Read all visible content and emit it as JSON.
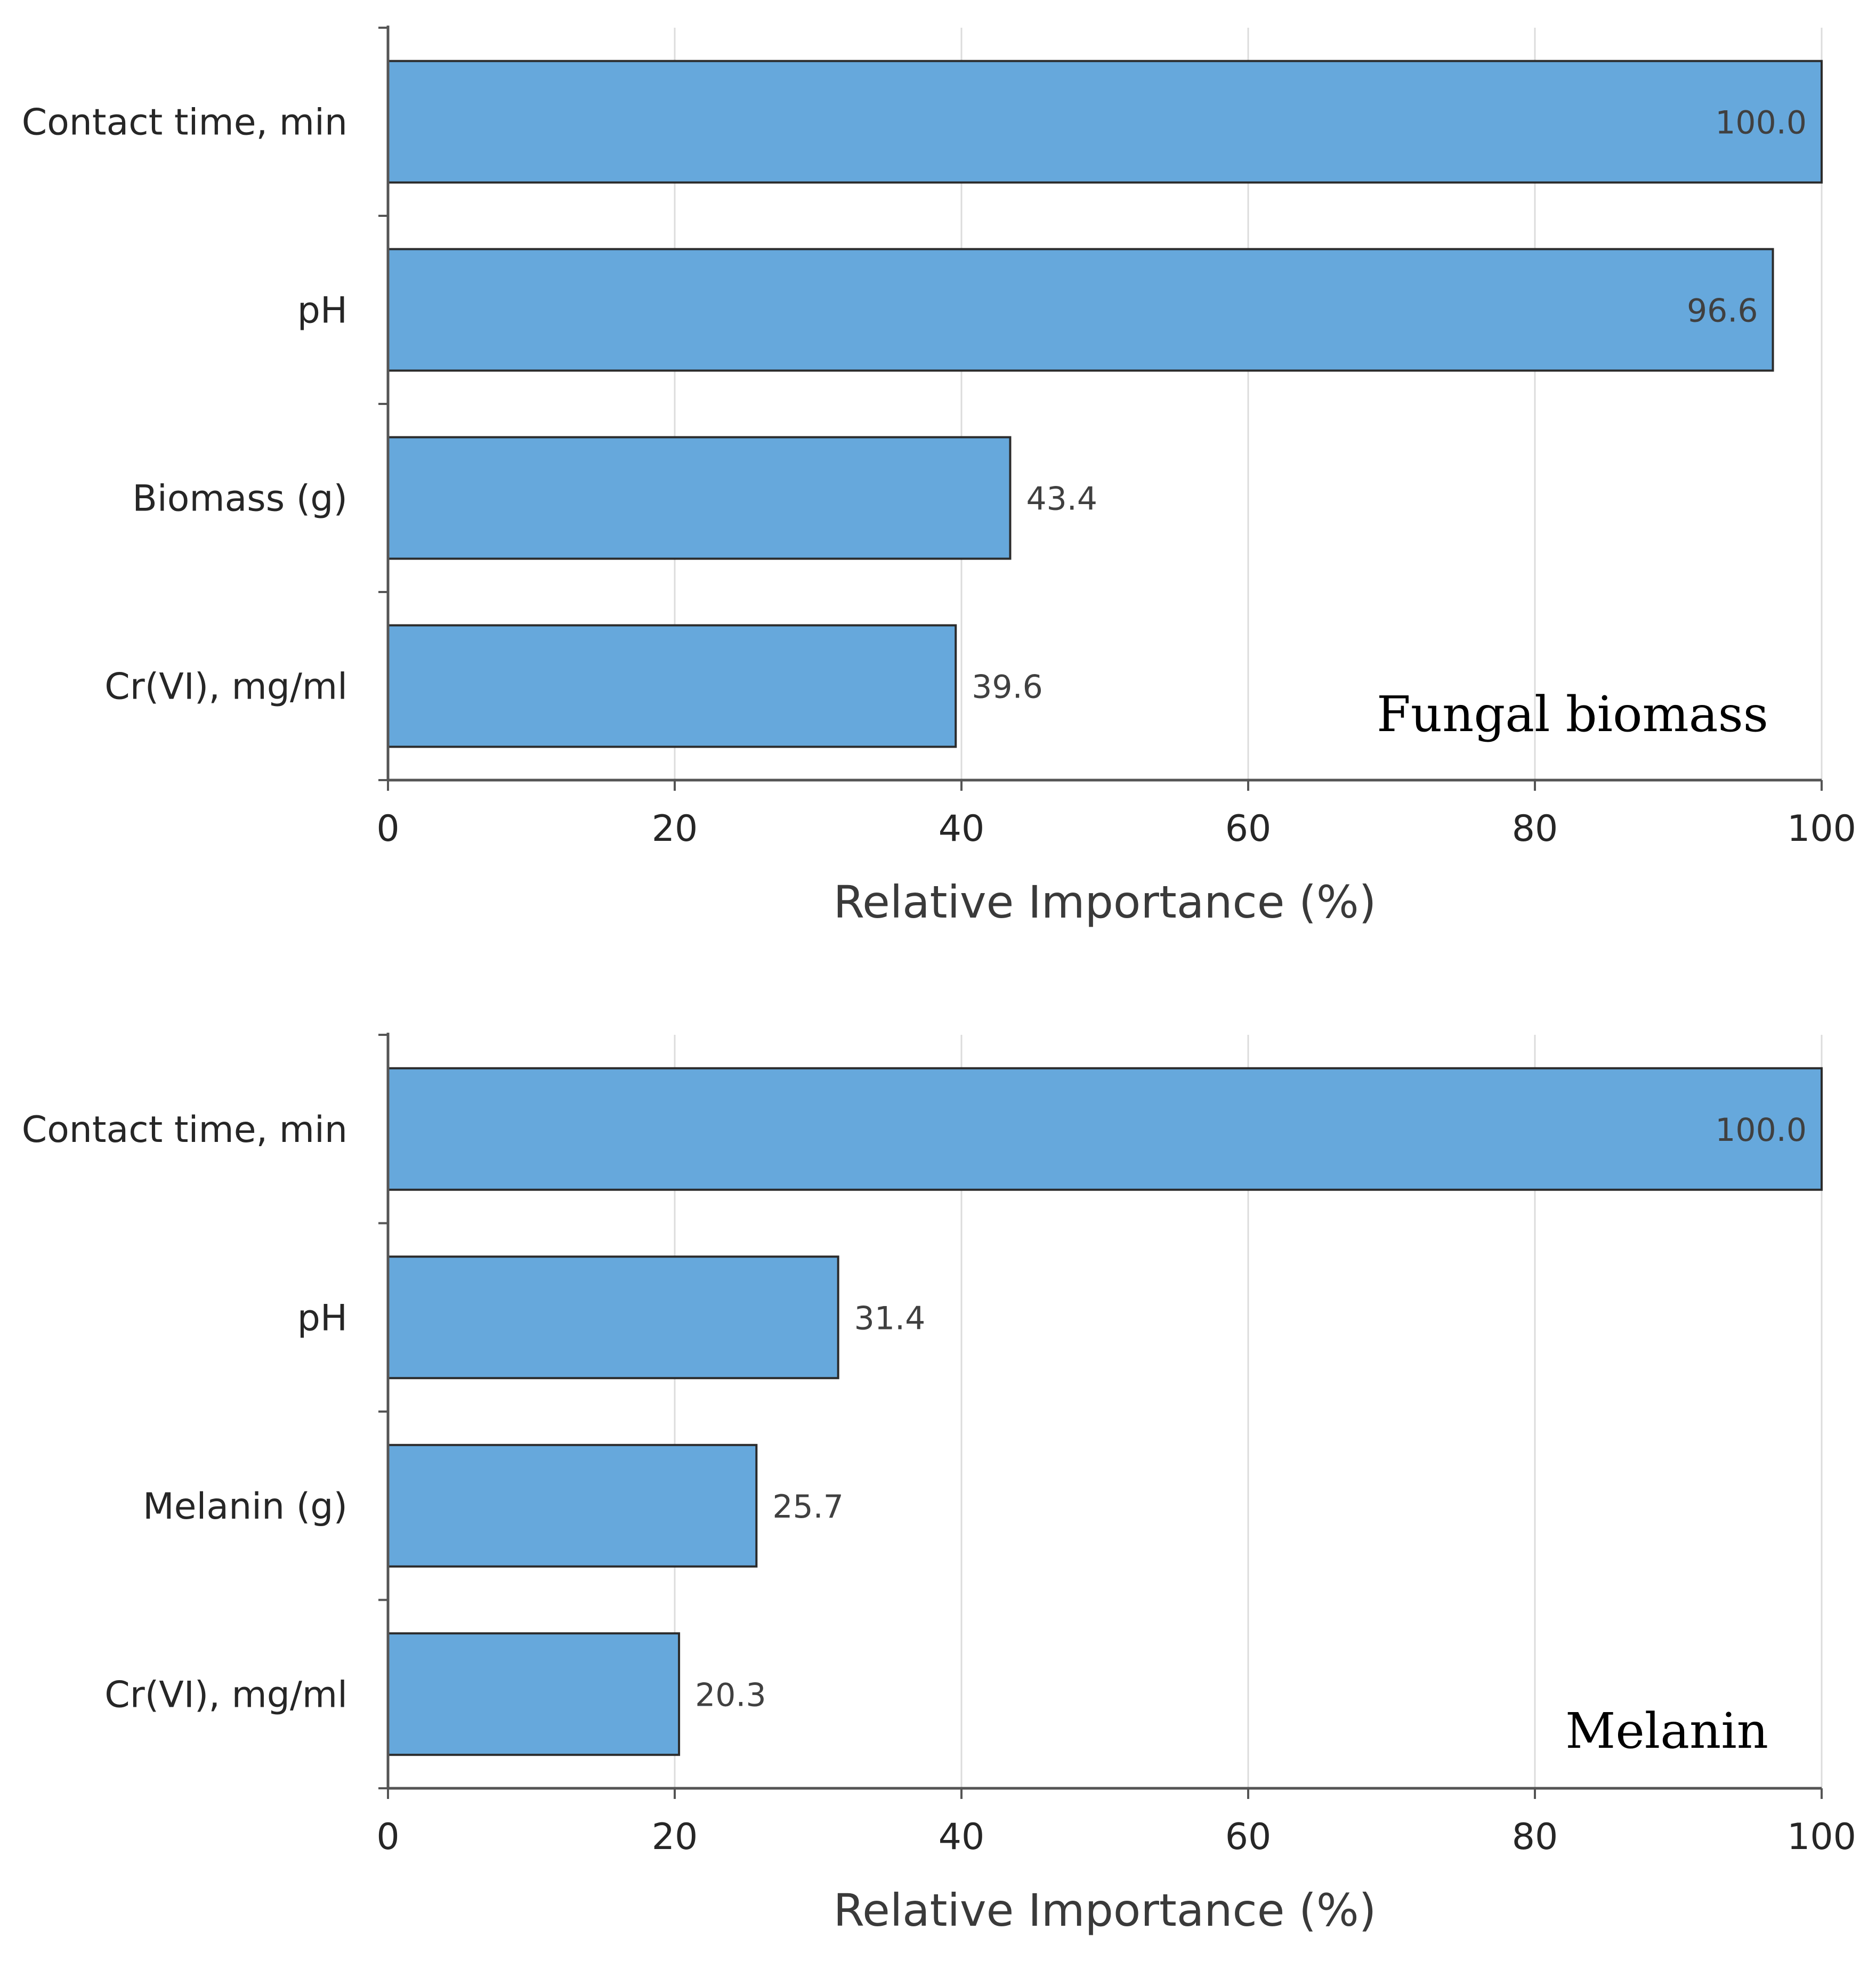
{
  "chart_data": [
    {
      "type": "bar",
      "orientation": "horizontal",
      "title": "Fungal biomass",
      "categories": [
        "Contact time, min",
        "pH",
        "Biomass (g)",
        "Cr(VI), mg/ml"
      ],
      "values": [
        100.0,
        96.6,
        43.4,
        39.6
      ],
      "value_labels": [
        "100.0",
        "96.6",
        "43.4",
        "39.6"
      ],
      "xlabel": "Relative Importance (%)",
      "ylabel": "",
      "xlim": [
        0,
        100
      ],
      "xticks": [
        0,
        20,
        40,
        60,
        80,
        100
      ],
      "grid": "vertical",
      "title_placement": "bottom-right"
    },
    {
      "type": "bar",
      "orientation": "horizontal",
      "title": "Melanin",
      "categories": [
        "Contact time, min",
        "pH",
        "Melanin (g)",
        "Cr(VI), mg/ml"
      ],
      "values": [
        100.0,
        31.4,
        25.7,
        20.3
      ],
      "value_labels": [
        "100.0",
        "31.4",
        "25.7",
        "20.3"
      ],
      "xlabel": "Relative Importance (%)",
      "ylabel": "",
      "xlim": [
        0,
        100
      ],
      "xticks": [
        0,
        20,
        40,
        60,
        80,
        100
      ],
      "grid": "vertical",
      "title_placement": "bottom-right"
    }
  ],
  "colors": {
    "bar_fill": "#66a8dc",
    "bar_stroke": "#2b2b2b",
    "grid": "#dcdcdc",
    "axis": "#555555"
  }
}
